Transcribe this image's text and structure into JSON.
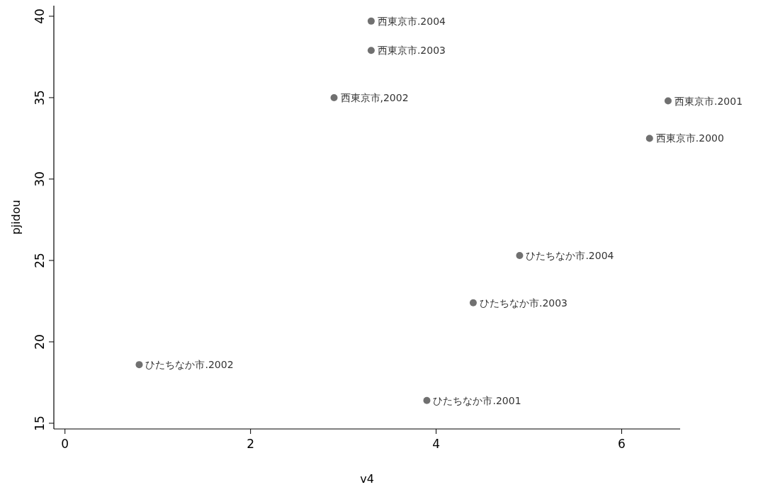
{
  "chart_data": {
    "type": "scatter",
    "xlabel": "v4",
    "ylabel": "pjidou",
    "x": [
      3.3,
      3.3,
      2.9,
      6.5,
      6.3,
      4.9,
      4.4,
      0.8,
      3.9
    ],
    "series": [
      {
        "color": "#707070",
        "values": [
          39.7,
          37.9,
          35.0,
          34.8,
          32.5,
          25.3,
          22.4,
          18.6,
          16.4
        ]
      }
    ],
    "xlim": [
      -0.12,
      6.63
    ],
    "ylim": [
      14.65,
      40.65
    ],
    "xticks": [
      0,
      2,
      4,
      6
    ],
    "yticks": [
      15,
      20,
      25,
      30,
      35,
      40
    ],
    "marker": "circle",
    "grid": false,
    "annotations": [
      {
        "text": "西東京市.2004",
        "x": 3.3,
        "y": 39.7
      },
      {
        "text": "西東京市.2003",
        "x": 3.3,
        "y": 37.9
      },
      {
        "text": "西東京市,2002",
        "x": 2.9,
        "y": 35.0
      },
      {
        "text": "西東京市.2001",
        "x": 6.5,
        "y": 34.8
      },
      {
        "text": "西東京市.2000",
        "x": 6.3,
        "y": 32.5
      },
      {
        "text": "ひたちなか市.2004",
        "x": 4.9,
        "y": 25.3
      },
      {
        "text": "ひたちなか市.2003",
        "x": 4.4,
        "y": 22.4
      },
      {
        "text": "ひたちなか市.2002",
        "x": 0.8,
        "y": 18.6
      },
      {
        "text": "ひたちなか市.2001",
        "x": 3.9,
        "y": 16.4
      }
    ]
  }
}
